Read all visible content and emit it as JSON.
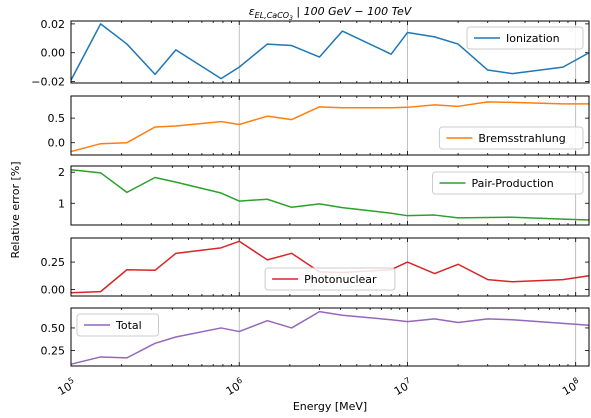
{
  "chart_data": {
    "type": "line",
    "title_symbol": "ε",
    "title_subscript": "EL,CaCO",
    "title_subscript_sub": "3",
    "title_sep": " | ",
    "title_range": "100 GeV − 100 TeV",
    "xlabel": "Energy [MeV]",
    "ylabel": "Relative error [%]",
    "x_scale": "log",
    "xlim": [
      100000,
      120000000
    ],
    "x_tick_labels": [
      {
        "x": 100000,
        "base": "10",
        "exp": "5"
      },
      {
        "x": 1000000,
        "base": "10",
        "exp": "6"
      },
      {
        "x": 10000000,
        "base": "10",
        "exp": "7"
      },
      {
        "x": 100000000,
        "base": "10",
        "exp": "8"
      }
    ],
    "grid": "vertical lines at decades",
    "x": [
      100000,
      150000,
      215000,
      316000,
      420000,
      780000,
      1000000,
      1470000,
      2050000,
      3000000,
      4100000,
      8000000,
      10000000,
      14500000,
      20000000,
      30000000,
      42000000,
      84000000,
      120000000
    ],
    "subplots": [
      {
        "name": "Ionization",
        "color": "#1f77b4",
        "legend_position": "upper right",
        "ylim": [
          -0.021,
          0.022
        ],
        "y_ticks": [
          -0.02,
          0.0,
          0.02
        ],
        "y_tick_labels": [
          "−0.02",
          "0.00",
          "0.02"
        ],
        "values": [
          -0.019,
          0.02,
          0.006,
          -0.015,
          0.002,
          -0.018,
          -0.01,
          0.006,
          0.005,
          -0.003,
          0.015,
          -0.001,
          0.014,
          0.011,
          0.006,
          -0.012,
          -0.0145,
          -0.01,
          0.0
        ]
      },
      {
        "name": "Bremsstrahlung",
        "color": "#ff7f0e",
        "legend_position": "lower right",
        "ylim": [
          -0.25,
          0.95
        ],
        "y_ticks": [
          0.0,
          0.5
        ],
        "y_tick_labels": [
          "0.0",
          "0.5"
        ],
        "values": [
          -0.18,
          -0.02,
          0.0,
          0.32,
          0.34,
          0.43,
          0.37,
          0.54,
          0.47,
          0.73,
          0.71,
          0.71,
          0.72,
          0.77,
          0.74,
          0.83,
          0.82,
          0.79,
          0.79
        ]
      },
      {
        "name": "Pair-Production",
        "color": "#2ca02c",
        "legend_position": "upper right",
        "ylim": [
          0.3,
          2.2
        ],
        "y_ticks": [
          1,
          2
        ],
        "y_tick_labels": [
          "1",
          "2"
        ],
        "values": [
          2.08,
          1.98,
          1.35,
          1.83,
          1.68,
          1.33,
          1.07,
          1.13,
          0.87,
          0.98,
          0.86,
          0.68,
          0.6,
          0.62,
          0.53,
          0.54,
          0.55,
          0.49,
          0.46
        ]
      },
      {
        "name": "Photonuclear",
        "color": "#d62728",
        "legend_position": "lower center",
        "ylim": [
          -0.06,
          0.47
        ],
        "y_ticks": [
          0.0,
          0.25
        ],
        "y_tick_labels": [
          "0.00",
          "0.25"
        ],
        "values": [
          -0.03,
          -0.02,
          0.18,
          0.175,
          0.33,
          0.38,
          0.44,
          0.27,
          0.33,
          0.16,
          0.155,
          0.18,
          0.25,
          0.145,
          0.23,
          0.09,
          0.07,
          0.09,
          0.125
        ]
      },
      {
        "name": "Total",
        "color": "#9467bd",
        "legend_position": "upper left",
        "ylim": [
          0.08,
          0.72
        ],
        "y_ticks": [
          0.25,
          0.5
        ],
        "y_tick_labels": [
          "0.25",
          "0.50"
        ],
        "values": [
          0.1,
          0.18,
          0.17,
          0.33,
          0.4,
          0.5,
          0.46,
          0.58,
          0.5,
          0.68,
          0.64,
          0.59,
          0.57,
          0.6,
          0.56,
          0.6,
          0.59,
          0.55,
          0.53
        ]
      }
    ]
  }
}
